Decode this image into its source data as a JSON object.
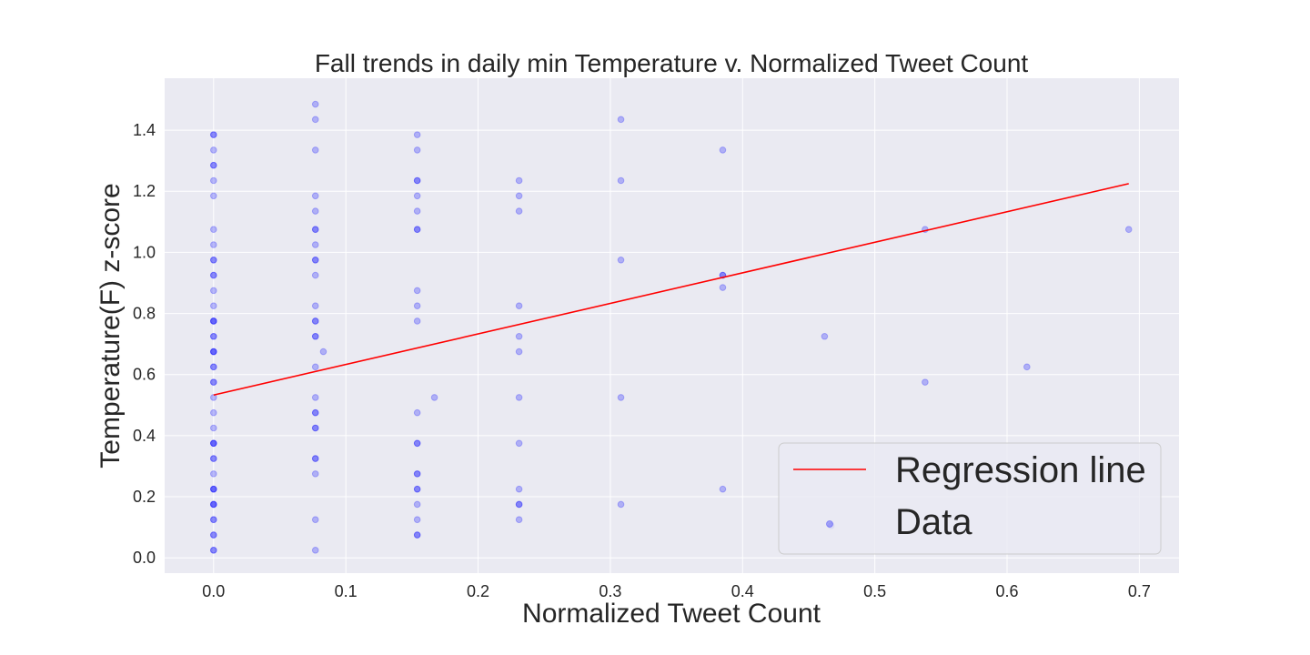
{
  "chart_data": {
    "type": "scatter",
    "title": "Fall trends in daily min Temperature v. Normalized Tweet Count",
    "xlabel": "Normalized Tweet Count",
    "ylabel": "Temperature(F) z-score",
    "xlim": [
      -0.037,
      0.73
    ],
    "ylim": [
      -0.05,
      1.57
    ],
    "x_ticks": [
      0.0,
      0.1,
      0.2,
      0.3,
      0.4,
      0.5,
      0.6,
      0.7
    ],
    "x_tick_labels": [
      "0.0",
      "0.1",
      "0.2",
      "0.3",
      "0.4",
      "0.5",
      "0.6",
      "0.7"
    ],
    "y_ticks": [
      0.0,
      0.2,
      0.4,
      0.6,
      0.8,
      1.0,
      1.2,
      1.4
    ],
    "y_tick_labels": [
      "0.0",
      "0.2",
      "0.4",
      "0.6",
      "0.8",
      "1.0",
      "1.2",
      "1.4"
    ],
    "grid": true,
    "background_color": "#eaeaf2",
    "grid_color": "#ffffff",
    "legend": {
      "position": "bottom-right",
      "entries": [
        {
          "label": "Regression line",
          "kind": "line",
          "color": "#ff0000"
        },
        {
          "label": "Data",
          "kind": "marker",
          "color": "#0000ff"
        }
      ]
    },
    "series": [
      {
        "name": "Regression line",
        "kind": "line",
        "color": "#ff0000",
        "x": [
          0.0,
          0.692
        ],
        "y": [
          0.533,
          1.225
        ]
      },
      {
        "name": "Data",
        "kind": "scatter",
        "color": "#0000ff",
        "opacity": 0.25,
        "points": [
          [
            0.0,
            0.025
          ],
          [
            0.0,
            0.075
          ],
          [
            0.0,
            0.125
          ],
          [
            0.0,
            0.175
          ],
          [
            0.0,
            0.225
          ],
          [
            0.0,
            0.275
          ],
          [
            0.0,
            0.325
          ],
          [
            0.0,
            0.375
          ],
          [
            0.0,
            0.425
          ],
          [
            0.0,
            0.475
          ],
          [
            0.0,
            0.525
          ],
          [
            0.0,
            0.575
          ],
          [
            0.0,
            0.625
          ],
          [
            0.0,
            0.675
          ],
          [
            0.0,
            0.725
          ],
          [
            0.0,
            0.775
          ],
          [
            0.0,
            0.825
          ],
          [
            0.0,
            0.875
          ],
          [
            0.0,
            0.925
          ],
          [
            0.0,
            0.975
          ],
          [
            0.0,
            1.025
          ],
          [
            0.0,
            1.075
          ],
          [
            0.0,
            1.185
          ],
          [
            0.0,
            1.235
          ],
          [
            0.0,
            1.285
          ],
          [
            0.0,
            1.335
          ],
          [
            0.0,
            1.385
          ],
          [
            0.0,
            0.025
          ],
          [
            0.0,
            0.075
          ],
          [
            0.0,
            0.125
          ],
          [
            0.0,
            0.175
          ],
          [
            0.0,
            0.225
          ],
          [
            0.0,
            0.325
          ],
          [
            0.0,
            0.375
          ],
          [
            0.0,
            0.575
          ],
          [
            0.0,
            0.625
          ],
          [
            0.0,
            0.675
          ],
          [
            0.0,
            0.725
          ],
          [
            0.0,
            0.775
          ],
          [
            0.0,
            0.925
          ],
          [
            0.0,
            0.975
          ],
          [
            0.0,
            1.285
          ],
          [
            0.0,
            1.385
          ],
          [
            0.0,
            0.225
          ],
          [
            0.0,
            0.375
          ],
          [
            0.0,
            0.675
          ],
          [
            0.0,
            0.775
          ],
          [
            0.0,
            0.175
          ],
          [
            0.077,
            0.025
          ],
          [
            0.077,
            0.125
          ],
          [
            0.077,
            0.275
          ],
          [
            0.077,
            0.325
          ],
          [
            0.077,
            0.425
          ],
          [
            0.077,
            0.475
          ],
          [
            0.077,
            0.525
          ],
          [
            0.077,
            0.625
          ],
          [
            0.077,
            0.725
          ],
          [
            0.077,
            0.775
          ],
          [
            0.077,
            0.825
          ],
          [
            0.077,
            0.925
          ],
          [
            0.077,
            0.975
          ],
          [
            0.077,
            1.025
          ],
          [
            0.077,
            1.075
          ],
          [
            0.077,
            1.135
          ],
          [
            0.077,
            1.185
          ],
          [
            0.077,
            1.335
          ],
          [
            0.077,
            1.435
          ],
          [
            0.077,
            1.485
          ],
          [
            0.077,
            0.325
          ],
          [
            0.077,
            0.425
          ],
          [
            0.077,
            0.475
          ],
          [
            0.077,
            0.725
          ],
          [
            0.077,
            0.775
          ],
          [
            0.077,
            0.975
          ],
          [
            0.077,
            1.075
          ],
          [
            0.083,
            0.675
          ],
          [
            0.154,
            0.075
          ],
          [
            0.154,
            0.125
          ],
          [
            0.154,
            0.175
          ],
          [
            0.154,
            0.225
          ],
          [
            0.154,
            0.275
          ],
          [
            0.154,
            0.375
          ],
          [
            0.154,
            0.475
          ],
          [
            0.154,
            0.775
          ],
          [
            0.154,
            0.825
          ],
          [
            0.154,
            0.875
          ],
          [
            0.154,
            1.075
          ],
          [
            0.154,
            1.135
          ],
          [
            0.154,
            1.185
          ],
          [
            0.154,
            1.235
          ],
          [
            0.154,
            1.335
          ],
          [
            0.154,
            1.385
          ],
          [
            0.154,
            0.075
          ],
          [
            0.154,
            0.225
          ],
          [
            0.154,
            0.275
          ],
          [
            0.154,
            0.375
          ],
          [
            0.154,
            1.235
          ],
          [
            0.154,
            1.075
          ],
          [
            0.167,
            0.525
          ],
          [
            0.231,
            0.125
          ],
          [
            0.231,
            0.175
          ],
          [
            0.231,
            0.225
          ],
          [
            0.231,
            0.375
          ],
          [
            0.231,
            0.525
          ],
          [
            0.231,
            0.675
          ],
          [
            0.231,
            0.725
          ],
          [
            0.231,
            0.825
          ],
          [
            0.231,
            1.135
          ],
          [
            0.231,
            1.185
          ],
          [
            0.231,
            1.235
          ],
          [
            0.231,
            0.175
          ],
          [
            0.308,
            0.175
          ],
          [
            0.308,
            0.525
          ],
          [
            0.308,
            0.975
          ],
          [
            0.308,
            1.235
          ],
          [
            0.308,
            1.435
          ],
          [
            0.385,
            0.225
          ],
          [
            0.385,
            0.885
          ],
          [
            0.385,
            0.925
          ],
          [
            0.385,
            0.925
          ],
          [
            0.385,
            1.335
          ],
          [
            0.462,
            0.725
          ],
          [
            0.467,
            0.105
          ],
          [
            0.538,
            0.575
          ],
          [
            0.538,
            1.075
          ],
          [
            0.615,
            0.625
          ],
          [
            0.692,
            1.075
          ]
        ]
      }
    ]
  }
}
